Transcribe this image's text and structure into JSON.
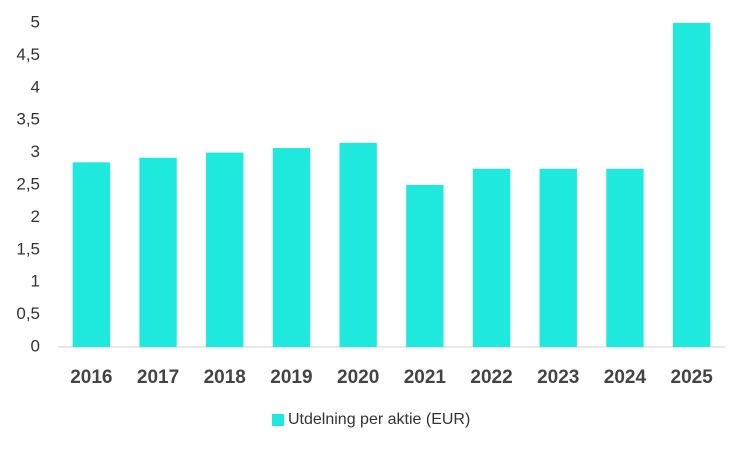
{
  "chart_data": {
    "type": "bar",
    "categories": [
      "2016",
      "2017",
      "2018",
      "2019",
      "2020",
      "2021",
      "2022",
      "2023",
      "2024",
      "2025"
    ],
    "series": [
      {
        "name": "Utdelning per aktie (EUR)",
        "color": "#1ee9dc",
        "values": [
          2.85,
          2.92,
          3.0,
          3.07,
          3.15,
          2.5,
          2.75,
          2.75,
          2.75,
          5.0
        ]
      }
    ],
    "ylim": [
      0,
      5
    ],
    "yticks": [
      0,
      {
        "value": 0.5,
        "label": "0,5"
      },
      1,
      {
        "value": 1.5,
        "label": "1,5"
      },
      2,
      {
        "value": 2.5,
        "label": "2,5"
      },
      3,
      {
        "value": 3.5,
        "label": "3,5"
      },
      4,
      {
        "value": 4.5,
        "label": "4,5"
      },
      5
    ],
    "grid": false,
    "legend": "bottom"
  }
}
